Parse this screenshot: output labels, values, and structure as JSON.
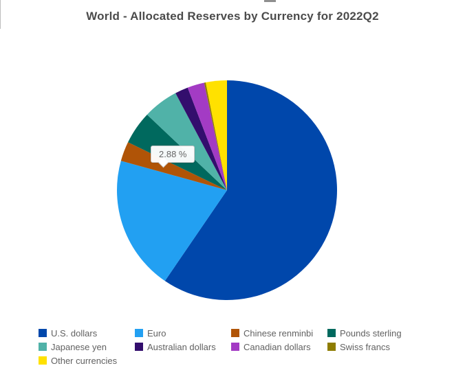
{
  "chart_data": {
    "type": "pie",
    "title": "World - Allocated Reserves by Currency for 2022Q2",
    "unit": "%",
    "start_angle_deg": 0,
    "direction": "clockwise",
    "legend_position": "bottom",
    "legend_columns": 4,
    "slices": [
      {
        "label": "U.S. dollars",
        "value": 59.53,
        "color": "#0047ab"
      },
      {
        "label": "Euro",
        "value": 19.77,
        "color": "#22a0f2"
      },
      {
        "label": "Chinese renminbi",
        "value": 2.88,
        "color": "#b05407"
      },
      {
        "label": "Pounds sterling",
        "value": 4.88,
        "color": "#00695e"
      },
      {
        "label": "Japanese yen",
        "value": 5.18,
        "color": "#50b2a8"
      },
      {
        "label": "Australian dollars",
        "value": 1.93,
        "color": "#330e6d"
      },
      {
        "label": "Canadian dollars",
        "value": 2.49,
        "color": "#a33bc4"
      },
      {
        "label": "Swiss francs",
        "value": 0.23,
        "color": "#8e7c00"
      },
      {
        "label": "Other currencies",
        "value": 3.1,
        "color": "#ffe100"
      }
    ]
  },
  "tooltip": {
    "text": "2.88 %"
  }
}
